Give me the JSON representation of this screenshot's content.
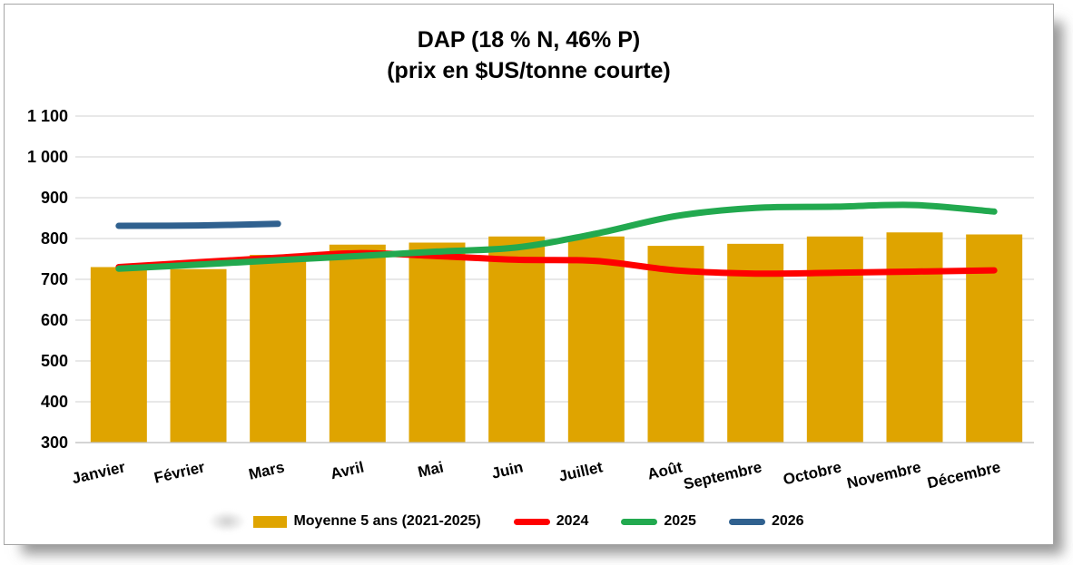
{
  "title": {
    "line1": "DAP (18 % N, 46% P)",
    "line2": "(prix en $US/tonne courte)"
  },
  "colors": {
    "bar_gold": "#DFA400",
    "line_red": "#FE0000",
    "line_green": "#22A94F",
    "line_blue": "#30618F",
    "gridline": "#D9D9D9",
    "axis_line": "#C0C0C0",
    "border_gray": "#A6A6A6",
    "text": "#000000"
  },
  "chart_data": {
    "type": "bar",
    "subtype": "combo bar+line",
    "title": "DAP (18 % N, 46% P) (prix en $US/tonne courte)",
    "xlabel": "",
    "ylabel": "",
    "ylim": [
      300,
      1100
    ],
    "ytick_step": 100,
    "grid": true,
    "legend_position": "bottom",
    "categories": [
      "Janvier",
      "Février",
      "Mars",
      "Avril",
      "Mai",
      "Juin",
      "Juillet",
      "Août",
      "Septembre",
      "Octobre",
      "Novembre",
      "Décembre"
    ],
    "yticks": [
      {
        "value": 300,
        "label": "300"
      },
      {
        "value": 400,
        "label": "400"
      },
      {
        "value": 500,
        "label": "500"
      },
      {
        "value": 600,
        "label": "600"
      },
      {
        "value": 700,
        "label": "700"
      },
      {
        "value": 800,
        "label": "800"
      },
      {
        "value": 900,
        "label": "900"
      },
      {
        "value": 1000,
        "label": "1 000"
      },
      {
        "value": 1100,
        "label": "1 100"
      }
    ],
    "series": [
      {
        "name": "Moyenne 5 ans (2021-2025)",
        "type": "bar",
        "color": "#DFA400",
        "values": [
          730,
          725,
          760,
          785,
          790,
          805,
          805,
          782,
          787,
          805,
          815,
          810
        ]
      },
      {
        "name": "2024",
        "type": "line",
        "color": "#FE0000",
        "values": [
          730,
          742,
          753,
          764,
          757,
          748,
          745,
          722,
          714,
          716,
          719,
          722
        ]
      },
      {
        "name": "2025",
        "type": "line",
        "color": "#22A94F",
        "values": [
          726,
          736,
          747,
          757,
          768,
          778,
          812,
          855,
          875,
          878,
          882,
          866
        ]
      },
      {
        "name": "2026",
        "type": "line",
        "color": "#30618F",
        "values": [
          831,
          832,
          836,
          null,
          null,
          null,
          null,
          null,
          null,
          null,
          null,
          null
        ]
      }
    ]
  },
  "legend": {
    "items": [
      {
        "label": "Moyenne 5 ans (2021-2025)",
        "marker": "rect",
        "color": "#DFA400"
      },
      {
        "label": "2024",
        "marker": "line",
        "color": "#FE0000"
      },
      {
        "label": "2025",
        "marker": "line",
        "color": "#22A94F"
      },
      {
        "label": "2026",
        "marker": "line",
        "color": "#30618F"
      }
    ]
  }
}
